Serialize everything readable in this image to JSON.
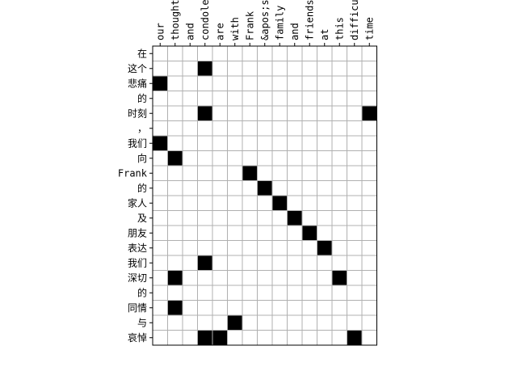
{
  "chart_data": {
    "type": "heatmap",
    "title": "",
    "xlabel": "",
    "ylabel": "",
    "x_labels": [
      "our",
      "thought",
      "and",
      "condole",
      "are",
      "with",
      "Frank",
      "&apos;s",
      "family",
      "and",
      "friends",
      "at",
      "this",
      "difficu",
      "time"
    ],
    "y_labels": [
      "在",
      "这个",
      "悲痛",
      "的",
      "时刻",
      "，",
      "我们",
      "向",
      "Frank",
      "的",
      "家人",
      "及",
      "朋友",
      "表达",
      "我们",
      "深切",
      "的",
      "同情",
      "与",
      "哀悼"
    ],
    "cells": [
      [
        1,
        3
      ],
      [
        2,
        0
      ],
      [
        4,
        3
      ],
      [
        4,
        14
      ],
      [
        6,
        0
      ],
      [
        7,
        1
      ],
      [
        8,
        6
      ],
      [
        9,
        7
      ],
      [
        10,
        8
      ],
      [
        11,
        9
      ],
      [
        12,
        10
      ],
      [
        13,
        11
      ],
      [
        14,
        3
      ],
      [
        15,
        1
      ],
      [
        15,
        12
      ],
      [
        17,
        1
      ],
      [
        18,
        5
      ],
      [
        19,
        3
      ],
      [
        19,
        4
      ],
      [
        19,
        13
      ]
    ],
    "colors": {
      "filled": "#000000",
      "empty": "#ffffff",
      "grid": "#b0b0b0",
      "frame": "#000000"
    },
    "grid": true
  }
}
